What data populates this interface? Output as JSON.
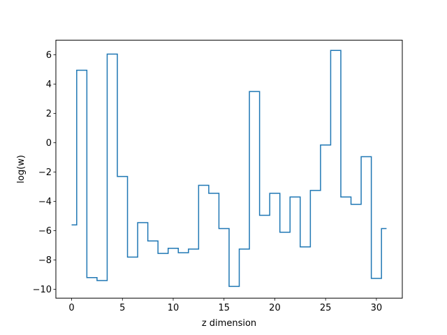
{
  "chart_data": {
    "type": "line",
    "drawstyle": "steps-mid",
    "title": "",
    "xlabel": "z dimension",
    "ylabel": "log(w)",
    "xlim": [
      -1.55,
      32.55
    ],
    "ylim": [
      -10.6,
      7.0
    ],
    "xticks": [
      0,
      5,
      10,
      15,
      20,
      25,
      30
    ],
    "yticks": [
      -10,
      -8,
      -6,
      -4,
      -2,
      0,
      2,
      4,
      6
    ],
    "grid": false,
    "legend": "none",
    "series": [
      {
        "color": "#1f77b4",
        "x": [
          0,
          1,
          2,
          3,
          4,
          5,
          6,
          7,
          8,
          9,
          10,
          11,
          12,
          13,
          14,
          15,
          16,
          17,
          18,
          19,
          20,
          21,
          22,
          23,
          24,
          25,
          26,
          27,
          28,
          29,
          30,
          31
        ],
        "y": [
          -5.6,
          4.95,
          -9.2,
          -9.4,
          6.05,
          -2.3,
          -7.8,
          -5.45,
          -6.7,
          -7.55,
          -7.2,
          -7.5,
          -7.25,
          -2.9,
          -3.45,
          -5.85,
          -9.8,
          -7.25,
          3.5,
          -4.95,
          -3.45,
          -6.1,
          -3.7,
          -7.1,
          -3.25,
          -0.15,
          6.3,
          -3.7,
          -4.2,
          -0.95,
          -9.25,
          -5.85
        ]
      }
    ]
  }
}
